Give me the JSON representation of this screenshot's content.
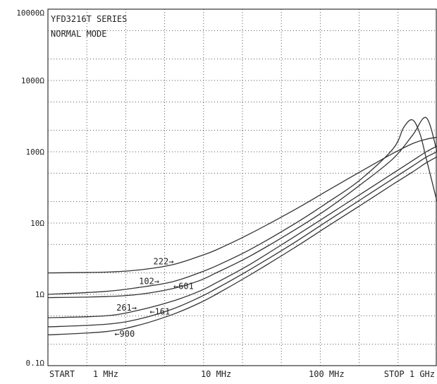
{
  "chart_data": {
    "type": "line",
    "title": "YFD3216T SERIES",
    "subtitle": "NORMAL MODE",
    "xlabel": "",
    "ylabel": "",
    "x_scale": "log",
    "y_scale": "log",
    "xlim_mhz": [
      0.3,
      1000
    ],
    "ylim_ohm": [
      0.1,
      10000
    ],
    "grid": true,
    "legend": "none",
    "y_tick_labels": [
      {
        "value": 10000,
        "label": "10000Ω"
      },
      {
        "value": 1000,
        "label": "1000Ω"
      },
      {
        "value": 100,
        "label": "100Ω"
      },
      {
        "value": 10,
        "label": "10Ω"
      },
      {
        "value": 1,
        "label": "1Ω"
      },
      {
        "value": 0.1,
        "label": "0.1Ω"
      }
    ],
    "x_tick_labels": [
      {
        "value": 0.3,
        "label": "START",
        "anchor": "start"
      },
      {
        "value": 1,
        "label": "1 MHz",
        "anchor": "middle"
      },
      {
        "value": 10,
        "label": "10 MHz",
        "anchor": "middle"
      },
      {
        "value": 100,
        "label": "100 MHz",
        "anchor": "middle"
      },
      {
        "value": 1000,
        "label": "STOP  1 GHz",
        "anchor": "end"
      }
    ],
    "series": [
      {
        "name": "222",
        "color": "#333333",
        "x": [
          0.3,
          1,
          2,
          4,
          7,
          10,
          20,
          50,
          100,
          200,
          400,
          600,
          800,
          1000
        ],
        "y": [
          2.0,
          2.05,
          2.2,
          2.6,
          3.4,
          4.2,
          7,
          15,
          28,
          52,
          95,
          130,
          150,
          160
        ]
      },
      {
        "name": "102",
        "color": "#333333",
        "x": [
          0.3,
          1,
          2,
          4,
          7,
          10,
          20,
          50,
          100,
          200,
          400,
          500,
          600,
          700,
          800,
          1000
        ],
        "y": [
          1.0,
          1.1,
          1.25,
          1.5,
          2.0,
          2.5,
          4.2,
          9.5,
          19,
          40,
          110,
          220,
          280,
          180,
          80,
          20
        ]
      },
      {
        "name": "601",
        "color": "#333333",
        "x": [
          0.3,
          1,
          2,
          4,
          7,
          10,
          20,
          50,
          100,
          200,
          400,
          600,
          800,
          1000
        ],
        "y": [
          0.9,
          0.93,
          1.0,
          1.2,
          1.55,
          2.0,
          3.4,
          7.8,
          15.5,
          34,
          80,
          170,
          300,
          100
        ]
      },
      {
        "name": "261",
        "color": "#333333",
        "x": [
          0.3,
          1,
          2,
          4,
          7,
          10,
          20,
          50,
          100,
          200,
          400,
          600,
          800,
          1000
        ],
        "y": [
          0.47,
          0.5,
          0.6,
          0.8,
          1.1,
          1.45,
          2.6,
          6.3,
          12.5,
          25,
          50,
          75,
          100,
          120
        ]
      },
      {
        "name": "161",
        "color": "#333333",
        "x": [
          0.3,
          1,
          2,
          4,
          7,
          10,
          20,
          50,
          100,
          200,
          400,
          600,
          800,
          1000
        ],
        "y": [
          0.35,
          0.38,
          0.45,
          0.62,
          0.9,
          1.2,
          2.2,
          5.2,
          10.5,
          21,
          42,
          63,
          84,
          100
        ]
      },
      {
        "name": "900",
        "color": "#333333",
        "x": [
          0.3,
          1,
          2,
          4,
          7,
          10,
          20,
          50,
          100,
          200,
          400,
          600,
          800,
          1000
        ],
        "y": [
          0.27,
          0.3,
          0.37,
          0.52,
          0.75,
          1.0,
          1.85,
          4.4,
          8.8,
          17.5,
          35,
          52,
          70,
          85
        ]
      }
    ],
    "annotations": [
      {
        "text": "222→",
        "x_mhz": 2.7,
        "y_ohm": 2.9
      },
      {
        "text": "102→",
        "x_mhz": 2.0,
        "y_ohm": 1.53
      },
      {
        "text": "←601",
        "x_mhz": 4.1,
        "y_ohm": 1.3
      },
      {
        "text": "261→",
        "x_mhz": 1.25,
        "y_ohm": 0.65
      },
      {
        "text": "←161",
        "x_mhz": 2.5,
        "y_ohm": 0.57
      },
      {
        "text": "←900",
        "x_mhz": 1.2,
        "y_ohm": 0.28
      }
    ]
  }
}
